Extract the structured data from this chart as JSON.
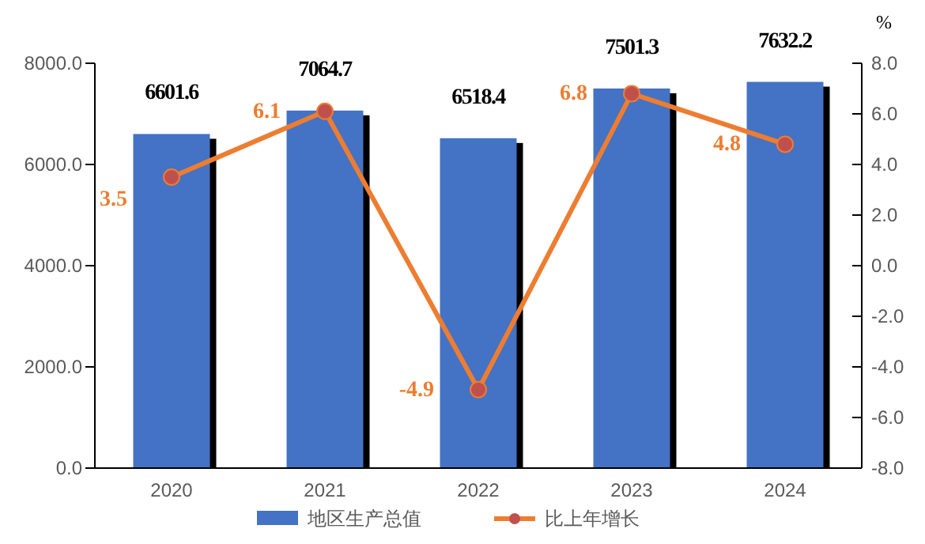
{
  "chart_data": {
    "type": "bar",
    "categories": [
      "2020",
      "2021",
      "2022",
      "2023",
      "2024"
    ],
    "series": [
      {
        "name": "地区生产总值",
        "color": "#4472c4",
        "values": [
          6601.6,
          7064.7,
          6518.4,
          7501.3,
          7632.2
        ]
      },
      {
        "name": "比上年增长",
        "type": "line",
        "axis": "y2",
        "color": "#ed7d31",
        "values": [
          3.5,
          6.1,
          -4.9,
          6.8,
          4.8
        ]
      }
    ],
    "ylim": [
      0,
      8000
    ],
    "yticks": [
      {
        "value": 0,
        "label": "0.0"
      },
      {
        "value": 2000,
        "label": "2000.0"
      },
      {
        "value": 4000,
        "label": "4000.0"
      },
      {
        "value": 6000,
        "label": "6000.0"
      },
      {
        "value": 8000,
        "label": "8000.0"
      }
    ],
    "y2label": "%",
    "y2lim": [
      -8,
      8
    ],
    "y2ticks": [
      {
        "value": -8,
        "label": "-8.0"
      },
      {
        "value": -6,
        "label": "-6.0"
      },
      {
        "value": -4,
        "label": "-4.0"
      },
      {
        "value": -2,
        "label": "-2.0"
      },
      {
        "value": 0,
        "label": "0.0"
      },
      {
        "value": 2,
        "label": "2.0"
      },
      {
        "value": 4,
        "label": "4.0"
      },
      {
        "value": 6,
        "label": "6.0"
      },
      {
        "value": 8,
        "label": "8.0"
      }
    ],
    "data_labels": true,
    "marker": "circle",
    "legend": "bottom",
    "grid": false
  }
}
